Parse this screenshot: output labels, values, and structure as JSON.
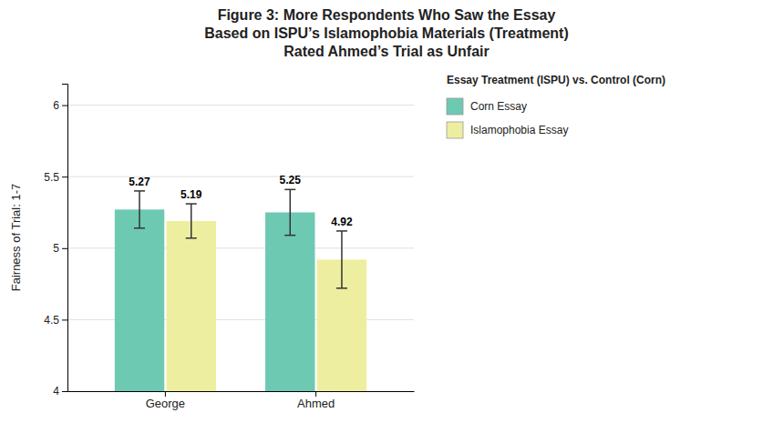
{
  "chart_data": {
    "type": "bar",
    "title": "Figure 3: More Respondents Who Saw the Essay\nBased on ISPU’s Islamophobia Materials (Treatment)\nRated Ahmed’s Trial as Unfair",
    "ylabel": "Fairness of Trial: 1-7",
    "categories": [
      "George",
      "Ahmed"
    ],
    "series": [
      {
        "name": "Corn Essay",
        "color": "#6EC9B2",
        "values": [
          5.27,
          5.25
        ],
        "errors": [
          0.13,
          0.16
        ]
      },
      {
        "name": "Islamophobia Essay",
        "color": "#EEEEA0",
        "values": [
          5.19,
          4.92
        ],
        "errors": [
          0.12,
          0.2
        ]
      }
    ],
    "legend_title": "Essay Treatment (ISPU) vs. Control (Corn)",
    "legend": "right",
    "ylim": [
      4.0,
      6.15
    ],
    "yticks": [
      4,
      4.5,
      5,
      5.5,
      6
    ],
    "grid": true,
    "data_labels": true
  }
}
